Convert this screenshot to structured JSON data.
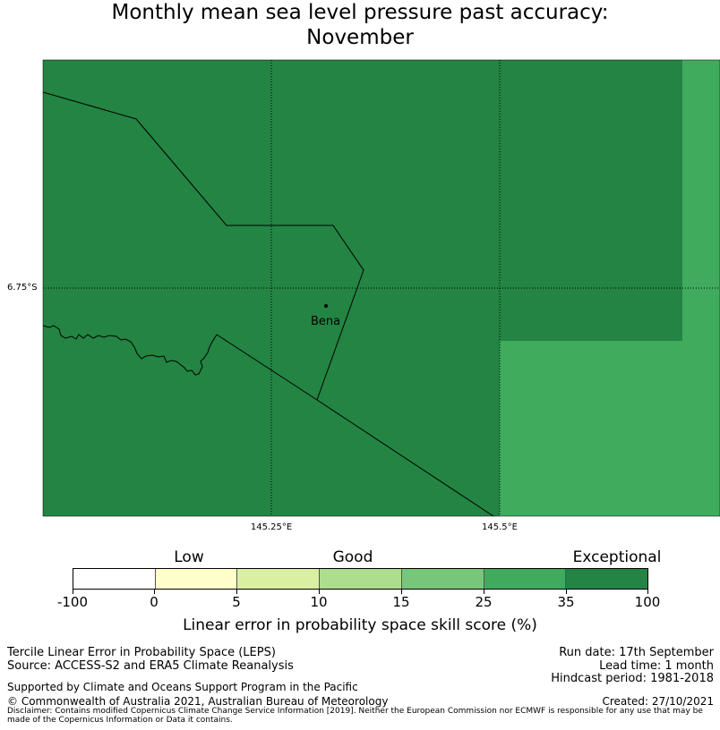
{
  "title": {
    "line1": "Monthly mean sea level pressure past accuracy:",
    "line2": "November"
  },
  "map": {
    "latitude_label": "6.75°S",
    "longitude_labels": [
      "145.25°E",
      "145.5°E"
    ],
    "place_name": "Bena",
    "region_colors": {
      "exceptional": "#238443",
      "band_25_35": "#41ab5d"
    }
  },
  "colorbar": {
    "category_labels": [
      "Low",
      "Good",
      "Exceptional"
    ],
    "tick_labels": [
      "-100",
      "0",
      "5",
      "10",
      "15",
      "25",
      "35",
      "100"
    ],
    "segment_colors": [
      "#ffffff",
      "#ffffcc",
      "#d9f0a3",
      "#addd8e",
      "#78c679",
      "#41ab5d",
      "#238443"
    ],
    "title": "Linear error in probability space skill score (%)"
  },
  "footer": {
    "left_line1": "Tercile Linear Error in Probability Space (LEPS)",
    "left_line2": "Source: ACCESS-S2 and ERA5 Climate Reanalysis",
    "supported_by": "Supported by Climate and Oceans Support Program in the Pacific",
    "copyright": "© Commonwealth of Australia 2021, Australian Bureau of Meteorology",
    "run_date": "Run date: 17th September",
    "lead_time": "Lead time: 1 month",
    "hindcast_period": "Hindcast period: 1981-2018",
    "created": "Created: 27/10/2021",
    "disclaimer": "Disclaimer: Contains modified Copernicus Climate Change Service Information [2019]. Neither the European Commission nor ECMWF is responsible for any use that may be made of the Copernicus Information or Data it contains."
  }
}
